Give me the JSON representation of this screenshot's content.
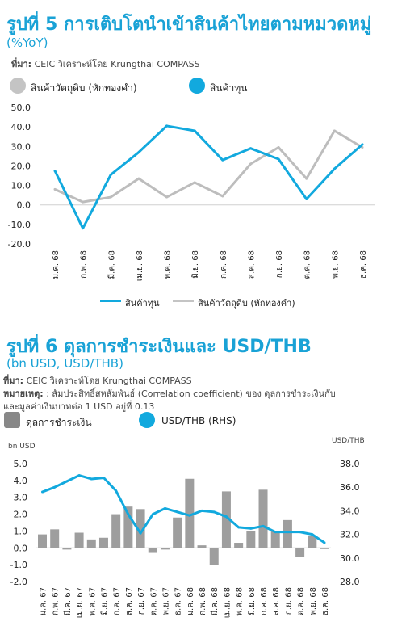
{
  "chart1": {
    "title": "รูปที่ 5 การเติบโตนำเข้าสินค้าไทยตามหมวดหมู่",
    "subtitle": "(%YoY)",
    "source_label": "ที่มา:",
    "source_text": "CEIC วิเคราะห์โดย Krungthai COMPASS",
    "legend_top": [
      "สินค้าวัตถุดิบ (หักทองคำ)",
      "สินค้าทุน"
    ],
    "legend_bottom": [
      "สินค้าทุน",
      "สินค้าวัตถุดิบ (หักทองคำ)"
    ]
  },
  "chart2": {
    "title": "รูปที่ 6 ดุลการชำระเงินและ USD/THB",
    "subtitle": "(bn USD, USD/THB)",
    "source_label": "ที่มา:",
    "source_text": "CEIC วิเคราะห์โดย Krungthai COMPASS",
    "note_label": "หมายเหตุ:",
    "note_text": ": สัมประสิทธิ์สหสัมพันธ์ (Correlation coefficient) ของ ดุลการชำระเงินกับ",
    "note_text2": "และมูลค่าเงินบาทต่อ 1 USD อยู่ที่ 0.13",
    "legend": [
      "ดุลการชำระเงิน",
      "USD/THB (RHS)"
    ],
    "left_unit": "bn USD",
    "right_unit": "USD/THB"
  },
  "chart_data": [
    {
      "type": "line",
      "title": "รูปที่ 5 การเติบโตนำเข้าสินค้าไทยตามหมวดหมู่",
      "subtitle": "(%YoY)",
      "categories": [
        "ม.ค. 68",
        "ก.พ. 68",
        "มี.ค. 68",
        "เม.ย. 68",
        "พ.ค. 68",
        "มิ.ย. 68",
        "ก.ค. 68",
        "ส.ค. 68",
        "ก.ย. 68",
        "ต.ค. 68",
        "พ.ย. 68",
        "ธ.ค. 68"
      ],
      "series": [
        {
          "name": "สินค้าทุน",
          "color": "#12a9de",
          "values": [
            17.5,
            -12,
            15.5,
            27,
            40.5,
            38,
            23,
            29,
            23.5,
            3,
            18.5,
            31
          ]
        },
        {
          "name": "สินค้าวัตถุดิบ (หักทองคำ)",
          "color": "#bdbdbd",
          "values": [
            8,
            1.5,
            4,
            13.5,
            4,
            11.5,
            4.5,
            21,
            29.5,
            13.5,
            38,
            29.5
          ]
        }
      ],
      "yticks": [
        50,
        40,
        30,
        20,
        10,
        0,
        -10,
        -20
      ],
      "ylim": [
        -20,
        50
      ],
      "legend_position": "top"
    },
    {
      "type": "bar",
      "title": "รูปที่ 6 ดุลการชำระเงินและ USD/THB",
      "subtitle": "(bn USD, USD/THB)",
      "categories": [
        "ม.ค. 67",
        "ก.พ. 67",
        "มี.ค. 67",
        "เม.ย. 67",
        "พ.ค. 67",
        "มิ.ย. 67",
        "ก.ค. 67",
        "ส.ค. 67",
        "ก.ย. 67",
        "ต.ค. 67",
        "พ.ย. 67",
        "ธ.ค. 67",
        "ม.ค. 68",
        "ก.พ. 68",
        "มี.ค. 68",
        "เม.ย. 68",
        "พ.ค. 68",
        "มิ.ย. 68",
        "ก.ค. 68",
        "ส.ค. 68",
        "ก.ย. 68",
        "ต.ค. 68",
        "พ.ย. 68",
        "ธ.ค. 68"
      ],
      "series": [
        {
          "name": "ดุลการชำระเงิน",
          "type": "bar",
          "axis": "left",
          "color": "#9e9e9e",
          "values": [
            0.8,
            1.1,
            -0.1,
            0.9,
            0.5,
            0.6,
            2.0,
            2.45,
            2.3,
            -0.3,
            -0.1,
            1.8,
            4.1,
            0.15,
            -1.0,
            3.35,
            0.3,
            1.0,
            3.45,
            1.0,
            1.65,
            -0.55,
            0.7,
            0.0
          ]
        },
        {
          "name": "USD/THB (RHS)",
          "type": "line",
          "axis": "right",
          "color": "#12a9de",
          "values": [
            35.6,
            36.0,
            36.5,
            37.0,
            36.7,
            36.8,
            35.7,
            33.7,
            32.1,
            33.7,
            34.2,
            33.9,
            33.6,
            34.0,
            33.9,
            33.5,
            32.6,
            32.5,
            32.7,
            32.2,
            32.2,
            32.2,
            32.0,
            31.3
          ]
        }
      ],
      "yticks_left": [
        5.0,
        4.0,
        3.0,
        2.0,
        1.0,
        0.0,
        -1.0,
        -2.0
      ],
      "ylim_left": [
        -2,
        5
      ],
      "yticks_right": [
        38.0,
        36.0,
        34.0,
        32.0,
        30.0,
        28.0
      ],
      "ylim_right": [
        28,
        38
      ],
      "legend_position": "top"
    }
  ]
}
